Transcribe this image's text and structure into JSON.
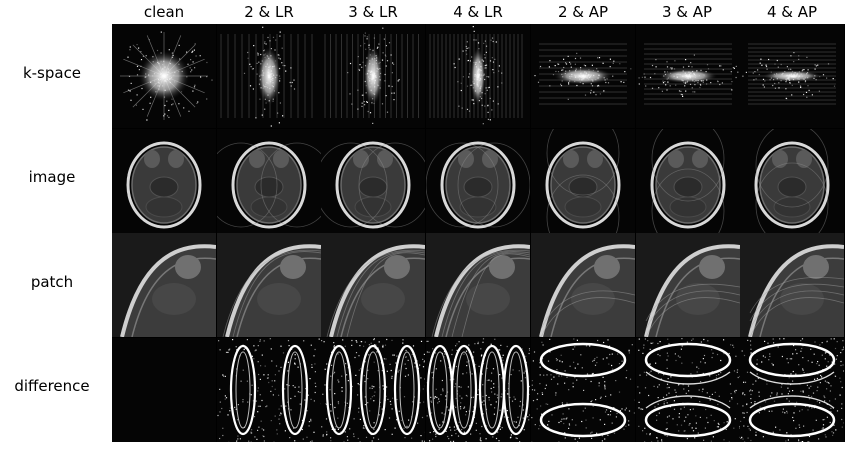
{
  "columns": [
    "clean",
    "2 & LR",
    "3 & LR",
    "4 & LR",
    "2 & AP",
    "3 & AP",
    "4 & AP"
  ],
  "rows": [
    "k-space",
    "image",
    "patch",
    "difference"
  ],
  "colors": {
    "background": "#ffffff",
    "panel": "#000000"
  }
}
